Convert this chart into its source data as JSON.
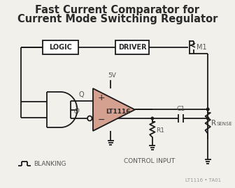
{
  "title_line1": "Fast Current Comparator for",
  "title_line2": "Current Mode Switching Regulator",
  "title_fontsize": 10.5,
  "bg_color": "#f2f0eb",
  "line_color": "#1a1a1a",
  "op_amp_fill": "#d4a090",
  "op_amp_edge": "#1a1a1a",
  "label_logic": "LOGIC",
  "label_driver": "DRIVER",
  "label_m1": "M1",
  "label_lt1116": "LT1116",
  "label_c1": "C1",
  "label_r1": "R1",
  "label_rsense_main": "R",
  "label_rsense_sub": "SENSE",
  "label_5v": "5V",
  "label_q": "Q",
  "label_blanking": "BLANKING",
  "label_control": "CONTROL INPUT",
  "label_watermark": "LT1116 • TA01",
  "text_color": "#2a2a2a",
  "gray_color": "#555555"
}
